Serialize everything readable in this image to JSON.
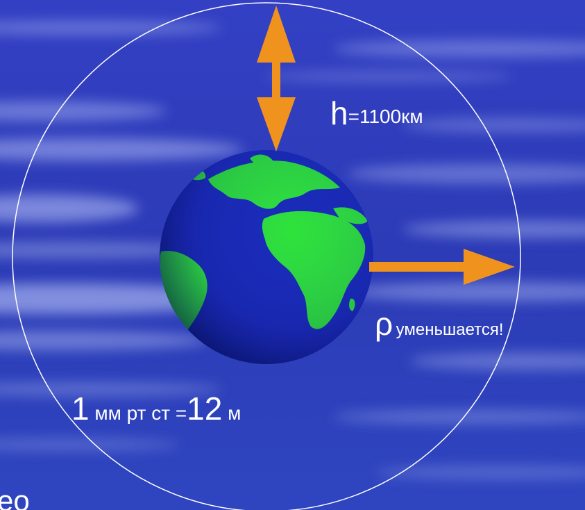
{
  "labels": {
    "height_symbol": "h",
    "height_value": "=1100км",
    "density_symbol": "ρ",
    "density_text": "уменьшается!",
    "pressure_num1": "1",
    "pressure_text": " мм рт ст =",
    "pressure_num2": "12",
    "pressure_unit": " м",
    "corner_text": "ео"
  },
  "colors": {
    "background": "#2a3fb8",
    "arrow": "#f0921e",
    "earth_ocean": "#1a2bb8",
    "earth_land": "#2fe33a",
    "orbit_line": "#ffffff"
  },
  "icons": {
    "planet": "earth-globe-icon",
    "vertical_arrow": "double-arrow-vertical-icon",
    "horizontal_arrow": "arrow-right-icon"
  }
}
